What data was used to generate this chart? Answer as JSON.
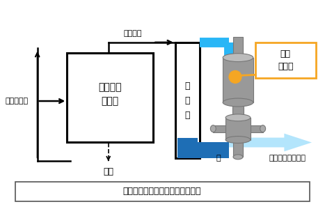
{
  "bottom_label": "生成ガス（メタン等）と水を分離",
  "biomass_label": "バイオマス",
  "reactor_label": "超臨界水\n反応器",
  "ash_label": "灰分",
  "gas_water_label": "ガス＋水",
  "heat_label": "熱\n回\n収",
  "water_label": "水",
  "gas_label": "ガス（メタン等）",
  "separator_label": "気液\n分離器",
  "cyan": "#29b6f6",
  "cyan_light": "#b3e5fc",
  "blue_dark": "#1e6eb5",
  "orange": "#f5a623",
  "gray_sep": "#999999",
  "gray_sep_dark": "#777777"
}
